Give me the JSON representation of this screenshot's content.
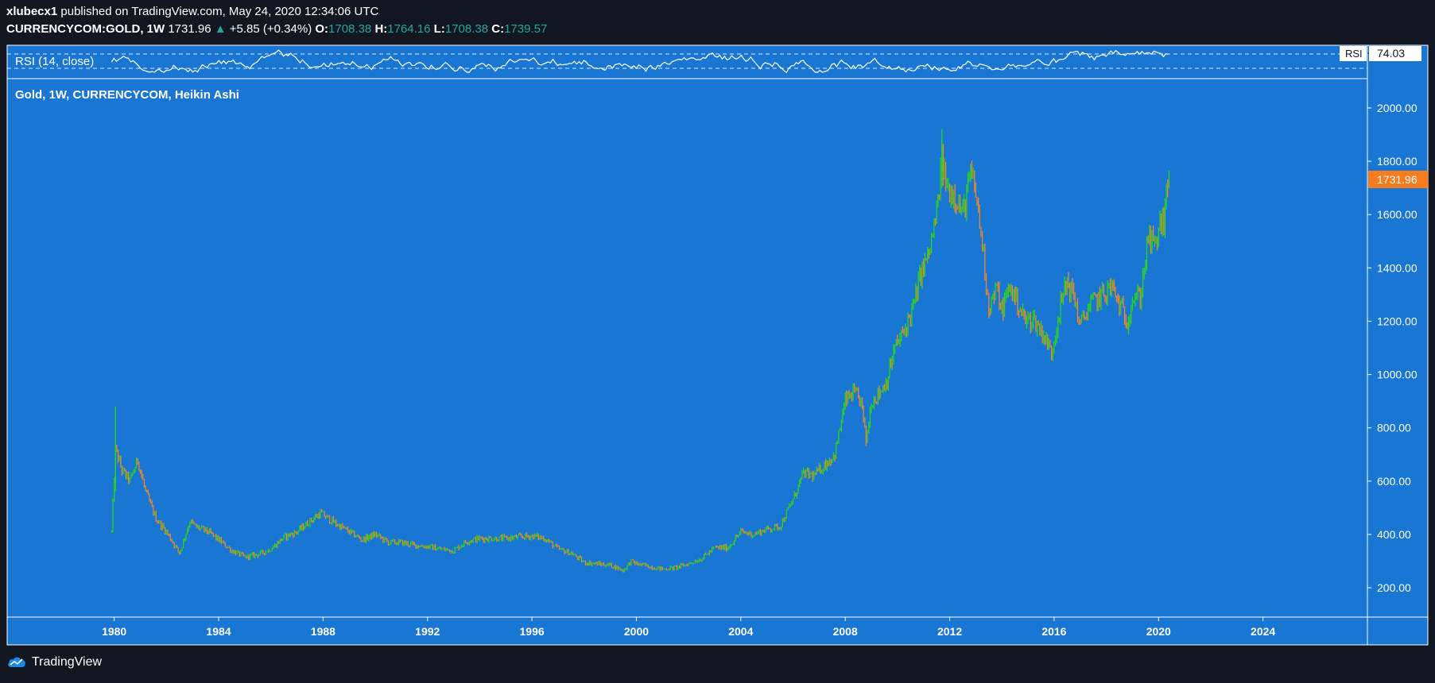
{
  "header": {
    "publisher": "xlubecx1",
    "published_text": "published on TradingView.com, May 24, 2020 12:34:06 UTC",
    "symbol": "CURRENCYCOM:GOLD, 1W",
    "last": "1731.96",
    "change": "+5.85 (+0.34%)",
    "o_label": "O:",
    "o_value": "1708.38",
    "h_label": "H:",
    "h_value": "1764.16",
    "l_label": "L:",
    "l_value": "1708.38",
    "c_label": "C:",
    "c_value": "1739.57"
  },
  "rsi": {
    "label": "RSI (14, close)",
    "tag": "RSI",
    "value": "74.03"
  },
  "main": {
    "title": "Gold, 1W, CURRENCYCOM, Heikin Ashi",
    "price_tag": "1731.96"
  },
  "footer": {
    "brand": "TradingView",
    "logo_icon": "tradingview-cloud-icon"
  },
  "colors": {
    "background": "#131722",
    "chart_bg": "#1976d2",
    "up": "#2cd61b",
    "down": "#f0862a",
    "price_tag": "#f57c1f",
    "rsi_line": "#ffffff",
    "text": "#ffffff"
  },
  "chart_data": {
    "type": "line",
    "style": "heikin-ashi-candles",
    "title": "Gold, 1W, CURRENCYCOM, Heikin Ashi",
    "xlabel": "",
    "ylabel": "",
    "x_ticks": [
      "1980",
      "1984",
      "1988",
      "1992",
      "1996",
      "2000",
      "2004",
      "2008",
      "2012",
      "2016",
      "2020",
      "2024"
    ],
    "x_tick_years": [
      1980,
      1984,
      1988,
      1992,
      1996,
      2000,
      2004,
      2008,
      2012,
      2016,
      2020,
      2024
    ],
    "y_ticks": [
      "200.00",
      "400.00",
      "600.00",
      "800.00",
      "1000.00",
      "1200.00",
      "1400.00",
      "1600.00",
      "1800.00",
      "2000.00"
    ],
    "y_tick_values": [
      200,
      400,
      600,
      800,
      1000,
      1200,
      1400,
      1600,
      1800,
      2000
    ],
    "xlim": [
      1975.9,
      2028.0
    ],
    "ylim": [
      90,
      2110
    ],
    "grid": false,
    "series": [
      {
        "x": [
          1979.9,
          1980.05,
          1980.3,
          1980.6,
          1980.9,
          1981.2,
          1981.6,
          1982.0,
          1982.5,
          1982.9,
          1983.1,
          1983.6,
          1984.0,
          1984.5,
          1985.0,
          1985.5,
          1986.0,
          1986.5,
          1987.0,
          1987.5,
          1987.9,
          1988.5,
          1989.0,
          1989.5,
          1990.0,
          1990.5,
          1991.0,
          1991.5,
          1992.0,
          1992.5,
          1993.0,
          1993.5,
          1994.0,
          1995.0,
          1996.0,
          1996.5,
          1997.0,
          1997.5,
          1998.0,
          1998.5,
          1999.0,
          1999.5,
          1999.8,
          2000.0,
          2000.5,
          2001.0,
          2001.5,
          2002.0,
          2002.5,
          2003.0,
          2003.5,
          2004.0,
          2004.5,
          2005.0,
          2005.5,
          2006.0,
          2006.4,
          2006.8,
          2007.2,
          2007.6,
          2008.0,
          2008.3,
          2008.6,
          2008.8,
          2009.0,
          2009.3,
          2009.6,
          2009.9,
          2010.2,
          2010.6,
          2010.9,
          2011.2,
          2011.5,
          2011.7,
          2011.9,
          2012.2,
          2012.5,
          2012.8,
          2013.0,
          2013.3,
          2013.5,
          2013.8,
          2014.0,
          2014.3,
          2014.6,
          2014.9,
          2015.2,
          2015.6,
          2015.9,
          2016.2,
          2016.5,
          2016.8,
          2017.0,
          2017.3,
          2017.6,
          2017.9,
          2018.2,
          2018.5,
          2018.8,
          2019.0,
          2019.3,
          2019.6,
          2019.9,
          2020.0,
          2020.2,
          2020.4
        ],
        "y": [
          410,
          720,
          640,
          600,
          680,
          560,
          460,
          410,
          330,
          450,
          430,
          410,
          380,
          340,
          315,
          325,
          345,
          390,
          410,
          450,
          480,
          440,
          410,
          380,
          400,
          370,
          370,
          360,
          355,
          345,
          340,
          375,
          385,
          385,
          395,
          385,
          345,
          330,
          295,
          290,
          285,
          265,
          300,
          290,
          280,
          270,
          275,
          290,
          310,
          350,
          350,
          410,
          400,
          420,
          430,
          530,
          630,
          620,
          660,
          700,
          900,
          930,
          900,
          750,
          900,
          930,
          980,
          1100,
          1150,
          1250,
          1380,
          1450,
          1600,
          1800,
          1700,
          1680,
          1600,
          1750,
          1680,
          1450,
          1250,
          1320,
          1240,
          1330,
          1270,
          1200,
          1210,
          1150,
          1080,
          1240,
          1350,
          1280,
          1180,
          1250,
          1280,
          1300,
          1330,
          1260,
          1200,
          1290,
          1290,
          1510,
          1480,
          1550,
          1580,
          1730
        ]
      }
    ],
    "rsi": {
      "label": "RSI (14, close)",
      "last": 74.03
    }
  }
}
